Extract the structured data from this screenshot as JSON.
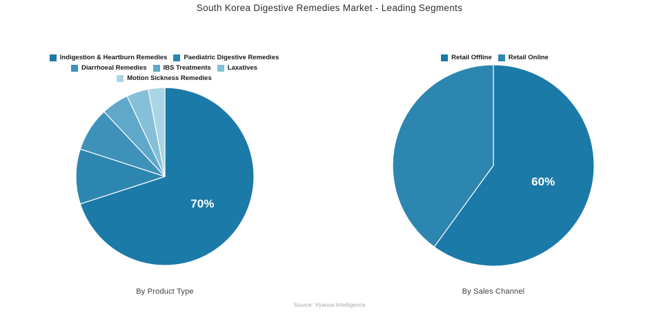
{
  "title": "South Korea Digestive Remedies Market - Leading Segments",
  "source_note": "Source: Vyansa Intelligence",
  "chart_data": [
    {
      "type": "pie",
      "title": "By Product Type",
      "categories": [
        "Indigestion & Heartburn Remedies",
        "Paediatric Digestive Remedies",
        "Diarrhoeal Remedies",
        "IBS Treatments",
        "Laxatives",
        "Motion Sickness Remedies"
      ],
      "values": [
        70,
        10,
        8,
        5,
        4,
        3
      ],
      "unit": "%",
      "slice_labels": [
        "70%",
        "",
        "",
        "",
        "",
        ""
      ],
      "colors": [
        "#1b7aa8",
        "#2d86af",
        "#3e92ba",
        "#5fa8c9",
        "#85c0d8",
        "#a9d6e5"
      ],
      "label_color": "#ffffff",
      "start_angle_deg": 90,
      "direction": "clockwise",
      "legend_position": "top"
    },
    {
      "type": "pie",
      "title": "By Sales Channel",
      "categories": [
        "Retail Offline",
        "Retail Online"
      ],
      "values": [
        60,
        40
      ],
      "unit": "%",
      "slice_labels": [
        "60%",
        ""
      ],
      "colors": [
        "#1b7aa8",
        "#2d86af"
      ],
      "label_color": "#ffffff",
      "start_angle_deg": 90,
      "direction": "clockwise",
      "legend_position": "top"
    }
  ]
}
